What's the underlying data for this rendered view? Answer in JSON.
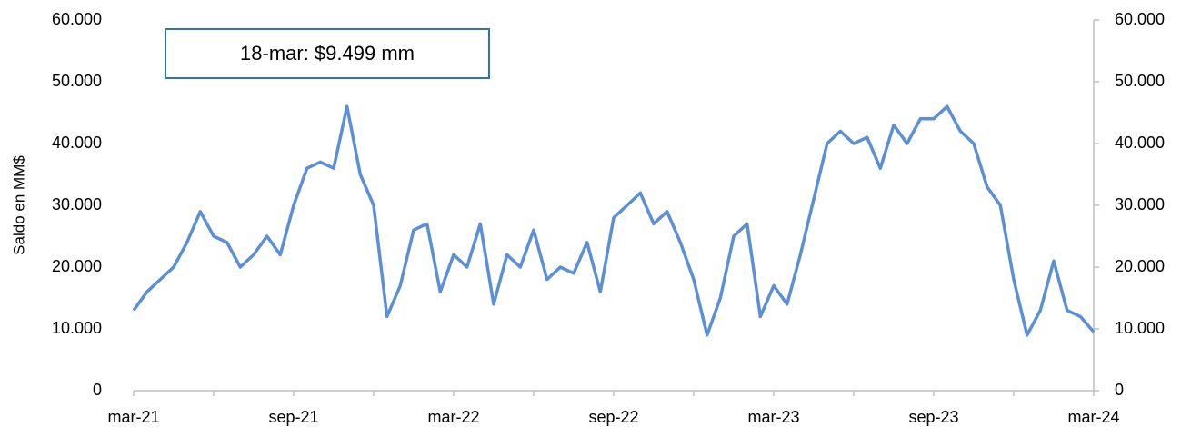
{
  "chart_data": {
    "type": "line",
    "y_label": "Saldo en MM$",
    "annotation": "18-mar: $9.499 mm",
    "categories": [
      "mar-21",
      null,
      null,
      null,
      null,
      null,
      null,
      null,
      null,
      null,
      null,
      null,
      "sep-21",
      null,
      null,
      null,
      null,
      null,
      null,
      null,
      null,
      null,
      null,
      null,
      "mar-22",
      null,
      null,
      null,
      null,
      null,
      null,
      null,
      null,
      null,
      null,
      null,
      "sep-22",
      null,
      null,
      null,
      null,
      null,
      null,
      null,
      null,
      null,
      null,
      null,
      "mar-23",
      null,
      null,
      null,
      null,
      null,
      null,
      null,
      null,
      null,
      null,
      null,
      "sep-23",
      null,
      null,
      null,
      null,
      null,
      null,
      null,
      null,
      null,
      null,
      null,
      "mar-24"
    ],
    "series": [
      {
        "color": "#5b8fd6",
        "values": [
          13000,
          16000,
          18000,
          20000,
          24000,
          29000,
          25000,
          24000,
          20000,
          22000,
          25000,
          22000,
          30000,
          36000,
          37000,
          36000,
          46000,
          35000,
          30000,
          12000,
          17000,
          26000,
          27000,
          16000,
          22000,
          20000,
          27000,
          14000,
          22000,
          20000,
          26000,
          18000,
          20000,
          19000,
          24000,
          16000,
          28000,
          30000,
          32000,
          27000,
          29000,
          24000,
          18000,
          9000,
          15000,
          25000,
          27000,
          12000,
          17000,
          14000,
          22000,
          31000,
          40000,
          42000,
          40000,
          41000,
          36000,
          43000,
          40000,
          44000,
          44000,
          46000,
          42000,
          40000,
          33000,
          30000,
          18000,
          9000,
          13000,
          21000,
          13000,
          12000,
          9499
        ]
      }
    ],
    "ylim": [
      0,
      60000
    ],
    "yticks": [
      0,
      {
        "value": 10000,
        "label": "10.000"
      },
      {
        "value": 20000,
        "label": "20.000"
      },
      {
        "value": 30000,
        "label": "30.000"
      },
      {
        "value": 40000,
        "label": "40.000"
      },
      {
        "value": 50000,
        "label": "50.000"
      },
      {
        "value": 60000,
        "label": "60.000"
      }
    ],
    "y2lim": [
      0,
      60000
    ],
    "y2ticks": [
      0,
      {
        "value": 10000,
        "label": "10.000"
      },
      {
        "value": 20000,
        "label": "20.000"
      },
      {
        "value": 30000,
        "label": "30.000"
      },
      {
        "value": 40000,
        "label": "40.000"
      },
      {
        "value": 50000,
        "label": "50.000"
      },
      {
        "value": 60000,
        "label": "60.000"
      }
    ]
  }
}
